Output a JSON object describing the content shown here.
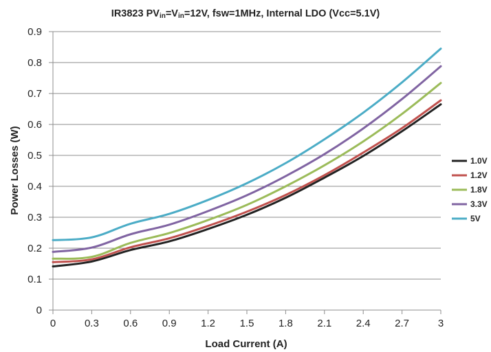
{
  "chart_data": {
    "type": "line",
    "title": {
      "prefix": "IR3823 PV",
      "sub1": "in",
      "mid": "=V",
      "sub2": "in",
      "suffix": "=12V, fsw=1MHz, Internal LDO (Vcc=5.1V)"
    },
    "xlabel": "Load Current (A)",
    "ylabel": "Power Losses (W)",
    "xlim": [
      0,
      3
    ],
    "ylim": [
      0,
      0.9
    ],
    "xticks": [
      "0",
      "0.3",
      "0.6",
      "0.9",
      "1.2",
      "1.5",
      "1.8",
      "2.1",
      "2.4",
      "2.7",
      "3"
    ],
    "yticks": [
      "0",
      "0.1",
      "0.2",
      "0.3",
      "0.4",
      "0.5",
      "0.6",
      "0.7",
      "0.8",
      "0.9"
    ],
    "grid": "horizontal",
    "legend_position": "right",
    "x": [
      0,
      0.3,
      0.6,
      0.9,
      1.2,
      1.5,
      1.8,
      2.1,
      2.4,
      2.7,
      3
    ],
    "series": [
      {
        "name": "1.0V",
        "color": "#222222",
        "values": [
          0.141,
          0.157,
          0.194,
          0.222,
          0.262,
          0.308,
          0.363,
          0.428,
          0.498,
          0.578,
          0.665
        ]
      },
      {
        "name": "1.2V",
        "color": "#c0504d",
        "values": [
          0.155,
          0.164,
          0.203,
          0.232,
          0.272,
          0.318,
          0.372,
          0.436,
          0.509,
          0.588,
          0.678
        ]
      },
      {
        "name": "1.8V",
        "color": "#9bbb59",
        "values": [
          0.166,
          0.172,
          0.217,
          0.249,
          0.291,
          0.34,
          0.4,
          0.468,
          0.545,
          0.634,
          0.734
        ]
      },
      {
        "name": "3.3V",
        "color": "#8064a2",
        "values": [
          0.188,
          0.202,
          0.245,
          0.276,
          0.32,
          0.371,
          0.433,
          0.504,
          0.587,
          0.682,
          0.788
        ]
      },
      {
        "name": "5V",
        "color": "#4bacc6",
        "values": [
          0.226,
          0.235,
          0.279,
          0.311,
          0.356,
          0.41,
          0.475,
          0.552,
          0.638,
          0.736,
          0.845
        ]
      }
    ]
  }
}
